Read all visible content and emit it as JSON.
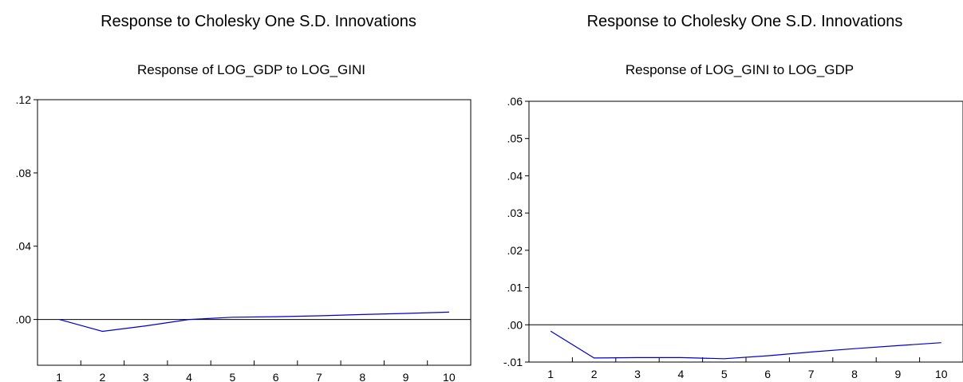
{
  "colors": {
    "series": "#0000cc",
    "axis": "#000000",
    "zero_line": "#000000",
    "background": "#ffffff"
  },
  "chart_data": [
    {
      "type": "line",
      "super_title": "Response to Cholesky One S.D. Innovations",
      "title": "Response of LOG_GDP to LOG_GINI",
      "xlabel": "",
      "ylabel": "",
      "x": [
        1,
        2,
        3,
        4,
        5,
        6,
        7,
        8,
        9,
        10
      ],
      "series": [
        {
          "values": [
            0.0,
            -0.0065,
            -0.0035,
            0.0,
            0.0012,
            0.0015,
            0.002,
            0.0027,
            0.0033,
            0.004
          ]
        }
      ],
      "x_tick_labels": [
        "1",
        "2",
        "3",
        "4",
        "5",
        "6",
        "7",
        "8",
        "9",
        "10"
      ],
      "y_ticks": [
        0.0,
        0.04,
        0.08,
        0.12
      ],
      "y_tick_labels": [
        ".00",
        ".04",
        ".08",
        ".12"
      ],
      "xlim": [
        0.5,
        10.5
      ],
      "ylim": [
        -0.025,
        0.12
      ],
      "zero_line": true,
      "grid": false
    },
    {
      "type": "line",
      "super_title": "Response to Cholesky One S.D. Innovations",
      "title": "Response of LOG_GINI to LOG_GDP",
      "xlabel": "",
      "ylabel": "",
      "x": [
        1,
        2,
        3,
        4,
        5,
        6,
        7,
        8,
        9,
        10
      ],
      "series": [
        {
          "values": [
            -0.0017,
            -0.0089,
            -0.0088,
            -0.0088,
            -0.0091,
            -0.0083,
            -0.0073,
            -0.0064,
            -0.0056,
            -0.0048
          ]
        }
      ],
      "x_tick_labels": [
        "1",
        "2",
        "3",
        "4",
        "5",
        "6",
        "7",
        "8",
        "9",
        "10"
      ],
      "y_ticks": [
        -0.01,
        0.0,
        0.01,
        0.02,
        0.03,
        0.04,
        0.05,
        0.06
      ],
      "y_tick_labels": [
        "-.01",
        ".00",
        ".01",
        ".02",
        ".03",
        ".04",
        ".05",
        ".06"
      ],
      "xlim": [
        0.5,
        10.5
      ],
      "ylim": [
        -0.01,
        0.06
      ],
      "zero_line": true,
      "grid": false
    }
  ]
}
